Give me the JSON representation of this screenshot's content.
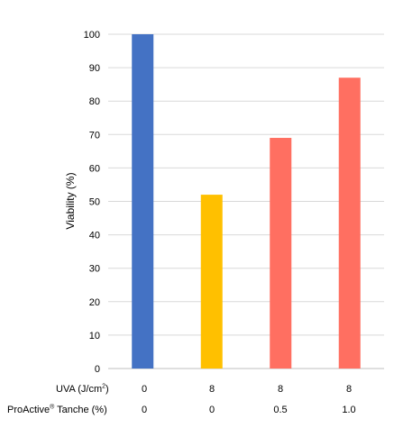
{
  "chart_data": {
    "type": "bar",
    "title": "",
    "xlabel": "",
    "ylabel": "Viability (%)",
    "ylim": [
      0,
      100
    ],
    "yticks": [
      0,
      10,
      20,
      30,
      40,
      50,
      60,
      70,
      80,
      90,
      100
    ],
    "grid": true,
    "categories": [
      "1",
      "2",
      "3",
      "4"
    ],
    "values": [
      100,
      52,
      69,
      87
    ],
    "colors": [
      "#4472C4",
      "#FFC000",
      "#FF6F61",
      "#FF6F61"
    ],
    "table_rows": [
      {
        "label": "UVA (J/cm",
        "label_sup": "2",
        "label_suffix": ")",
        "values": [
          "0",
          "8",
          "8",
          "8"
        ]
      },
      {
        "label": "ProActive",
        "label_sup": "®",
        "label_suffix": " Tanche (%)",
        "values": [
          "0",
          "0",
          "0.5",
          "1.0"
        ]
      }
    ]
  }
}
